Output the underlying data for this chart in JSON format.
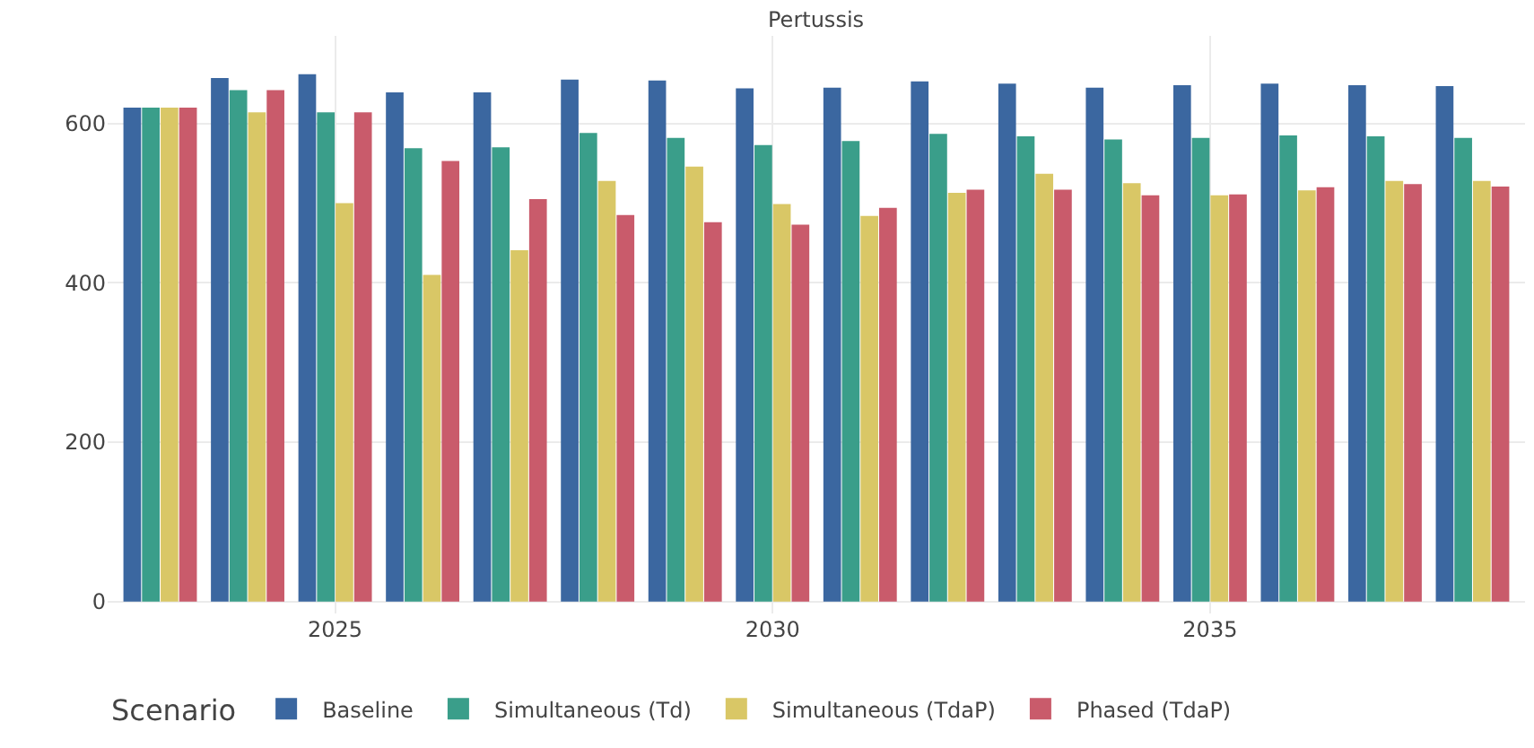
{
  "chart_data": {
    "type": "bar",
    "title": "Pertussis",
    "legend_title": "Scenario",
    "x": [
      2023,
      2024,
      2025,
      2026,
      2027,
      2028,
      2029,
      2030,
      2031,
      2032,
      2033,
      2034,
      2035,
      2036,
      2037,
      2038
    ],
    "series": [
      {
        "name": "Baseline",
        "color": "#3b67a0",
        "values": [
          620,
          657,
          662,
          639,
          639,
          655,
          654,
          644,
          645,
          653,
          650,
          645,
          648,
          650,
          648,
          647
        ]
      },
      {
        "name": "Simultaneous (Td)",
        "color": "#3a9e8a",
        "values": [
          620,
          642,
          614,
          569,
          570,
          588,
          582,
          573,
          578,
          587,
          584,
          580,
          582,
          585,
          584,
          582
        ]
      },
      {
        "name": "Simultaneous (TdaP)",
        "color": "#d9c766",
        "values": [
          620,
          614,
          500,
          410,
          441,
          528,
          546,
          499,
          484,
          513,
          537,
          525,
          510,
          516,
          528,
          528
        ]
      },
      {
        "name": "Phased (TdaP)",
        "color": "#c95b6b",
        "values": [
          620,
          642,
          614,
          553,
          505,
          485,
          476,
          473,
          494,
          517,
          517,
          510,
          511,
          520,
          524,
          521
        ]
      }
    ],
    "xlim": [
      2022.4,
      2038.6
    ],
    "xticks": [
      2025,
      2030,
      2035
    ],
    "ylim": [
      -15,
      710
    ],
    "yticks": [
      0,
      200,
      400,
      600
    ],
    "grid": true,
    "legend": "bottom"
  }
}
